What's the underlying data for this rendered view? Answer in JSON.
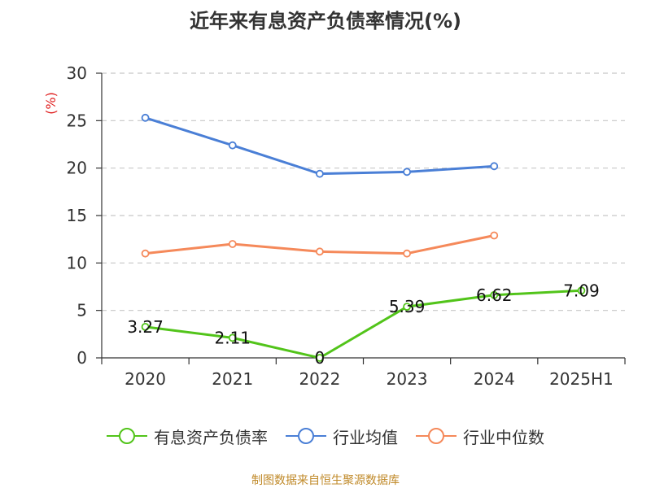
{
  "title": "近年来有息资产负债率情况(%)",
  "source": "制图数据来自恒生聚源数据库",
  "chart_data": {
    "type": "line",
    "categories": [
      "2020",
      "2021",
      "2022",
      "2023",
      "2024",
      "2025H1"
    ],
    "ylabel": "(%)",
    "ylim": [
      0,
      30
    ],
    "yticks": [
      0,
      5,
      10,
      15,
      20,
      25,
      30
    ],
    "grid": true,
    "legend_position": "bottom",
    "series": [
      {
        "name": "有息资产负债率",
        "color": "#52c41a",
        "values": [
          3.27,
          2.11,
          0,
          5.39,
          6.62,
          7.09
        ],
        "labels": [
          "3.27",
          "2.11",
          "0",
          "5.39",
          "6.62",
          "7.09"
        ]
      },
      {
        "name": "行业均值",
        "color": "#4a7fd6",
        "values": [
          25.3,
          22.4,
          19.4,
          19.6,
          20.2,
          null
        ]
      },
      {
        "name": "行业中位数",
        "color": "#f5895a",
        "values": [
          11.0,
          12.0,
          11.2,
          11.0,
          12.9,
          null
        ]
      }
    ]
  }
}
